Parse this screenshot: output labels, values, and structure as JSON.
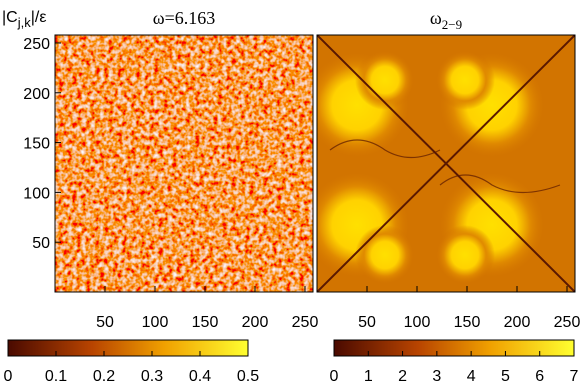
{
  "chart_data": [
    {
      "type": "heatmap",
      "title": "ω=6.163",
      "ylabel": {
        "main": "|C",
        "sub": "j,k",
        "tail": "|/ε"
      },
      "xlim": [
        0,
        258
      ],
      "ylim": [
        0,
        258
      ],
      "xticks": [
        50,
        100,
        150,
        200,
        250
      ],
      "yticks": [
        50,
        100,
        150,
        200,
        250
      ],
      "colorbar": {
        "lim": [
          0,
          0.5
        ],
        "ticks": [
          0,
          0.1,
          0.2,
          0.3,
          0.4,
          0.5
        ]
      }
    },
    {
      "type": "heatmap",
      "title": {
        "main": "ω",
        "sub": "2−9"
      },
      "xlim": [
        0,
        258
      ],
      "ylim": [
        0,
        258
      ],
      "xticks": [
        50,
        100,
        150,
        200,
        250
      ],
      "colorbar": {
        "lim": [
          0,
          7
        ],
        "ticks": [
          0,
          1,
          2,
          3,
          4,
          5,
          6,
          7
        ]
      }
    }
  ]
}
